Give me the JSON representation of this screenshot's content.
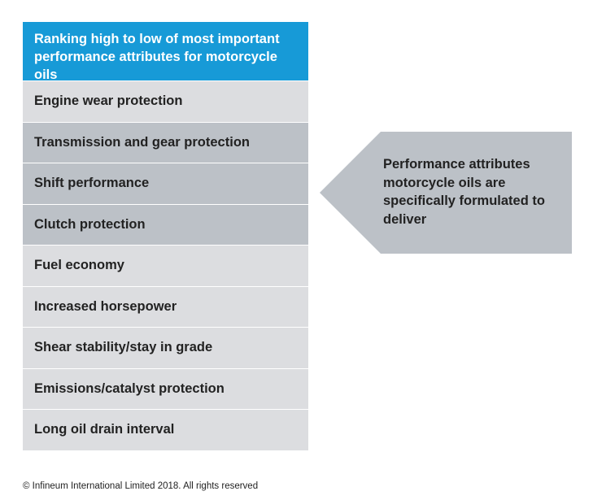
{
  "table": {
    "header": "Ranking high to low of most important performance attributes for motorcycle oils",
    "rows": [
      {
        "label": "Engine wear protection",
        "shade": "light"
      },
      {
        "label": "Transmission and gear protection",
        "shade": "dark"
      },
      {
        "label": "Shift performance",
        "shade": "dark"
      },
      {
        "label": "Clutch protection",
        "shade": "dark"
      },
      {
        "label": "Fuel economy",
        "shade": "light"
      },
      {
        "label": "Increased horsepower",
        "shade": "light"
      },
      {
        "label": "Shear stability/stay in grade",
        "shade": "light"
      },
      {
        "label": "Emissions/catalyst protection",
        "shade": "light"
      },
      {
        "label": "Long oil drain interval",
        "shade": "light"
      }
    ]
  },
  "callout": {
    "text": "Performance attributes motorcycle oils are specifically formulated to deliver"
  },
  "footer": {
    "copyright": "© Infineum International Limited 2018. All rights reserved"
  },
  "colors": {
    "header_bg": "#179ad7",
    "row_light": "#dcdde0",
    "row_dark": "#bcc1c7",
    "callout_bg": "#bcc1c7"
  }
}
